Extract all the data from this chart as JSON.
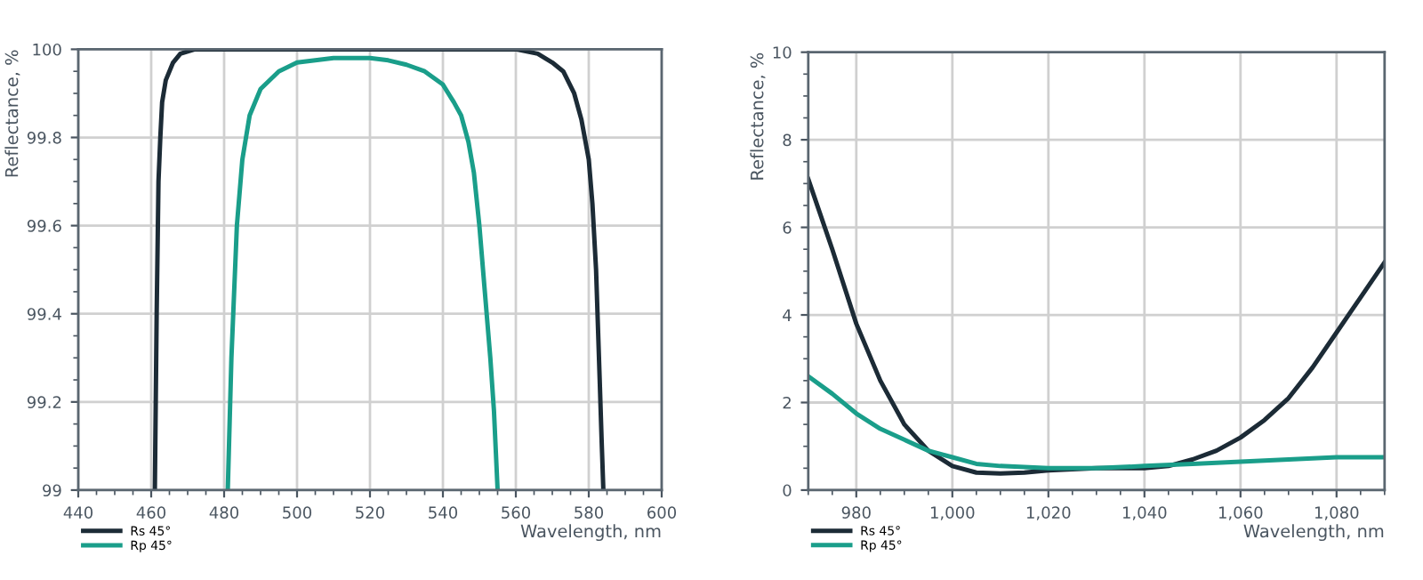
{
  "chart_data": [
    {
      "type": "line",
      "xlabel": "Wavelength, nm",
      "ylabel": "Reflectance, %",
      "xlim": [
        440,
        600
      ],
      "ylim": [
        99,
        100
      ],
      "xticks": [
        440,
        460,
        480,
        500,
        520,
        540,
        560,
        580,
        600
      ],
      "yticks": [
        99,
        99.2,
        99.4,
        99.6,
        99.8,
        100
      ],
      "grid": true,
      "legend": "bottom left",
      "line_style": "solid",
      "marker": "none",
      "series": [
        {
          "name": "Rs 45°",
          "color": "#1c2b36",
          "x": [
            461,
            461.5,
            462,
            462.5,
            463,
            464,
            466,
            468,
            472,
            480,
            500,
            520,
            540,
            560,
            566,
            570,
            573,
            576,
            578,
            580,
            581,
            582,
            583,
            583.5,
            584
          ],
          "values": [
            99,
            99.4,
            99.7,
            99.8,
            99.88,
            99.93,
            99.97,
            99.99,
            100,
            100,
            100,
            100,
            100,
            100,
            99.99,
            99.97,
            99.95,
            99.9,
            99.84,
            99.75,
            99.65,
            99.5,
            99.25,
            99.12,
            99
          ]
        },
        {
          "name": "Rp 45°",
          "color": "#1a9e8a",
          "x": [
            481,
            482,
            483.5,
            485,
            487,
            490,
            495,
            500,
            505,
            510,
            515,
            520,
            525,
            530,
            535,
            540,
            543,
            545,
            547,
            548.5,
            550,
            551.5,
            553,
            554,
            555
          ],
          "values": [
            99,
            99.3,
            99.6,
            99.75,
            99.85,
            99.91,
            99.95,
            99.97,
            99.975,
            99.98,
            99.98,
            99.98,
            99.975,
            99.965,
            99.95,
            99.92,
            99.88,
            99.85,
            99.79,
            99.72,
            99.6,
            99.45,
            99.3,
            99.18,
            99
          ]
        }
      ]
    },
    {
      "type": "line",
      "xlabel": "Wavelength, nm",
      "ylabel": "Reflectance, %",
      "xlim": [
        970,
        1090
      ],
      "ylim": [
        0,
        10
      ],
      "xticks": [
        980,
        {
          "value": 1000,
          "label": "1,000"
        },
        {
          "value": 1020,
          "label": "1,020"
        },
        {
          "value": 1040,
          "label": "1,040"
        },
        {
          "value": 1060,
          "label": "1,060"
        },
        {
          "value": 1080,
          "label": "1,080"
        }
      ],
      "yticks": [
        0,
        2,
        4,
        6,
        8,
        10
      ],
      "grid": true,
      "legend": "bottom left",
      "line_style": "solid",
      "marker": "none",
      "series": [
        {
          "name": "Rs 45°",
          "color": "#1c2b36",
          "x": [
            970,
            975,
            980,
            985,
            990,
            995,
            1000,
            1005,
            1010,
            1015,
            1020,
            1030,
            1040,
            1045,
            1050,
            1055,
            1060,
            1065,
            1070,
            1075,
            1080,
            1085,
            1090
          ],
          "values": [
            7.1,
            5.5,
            3.8,
            2.5,
            1.5,
            0.9,
            0.55,
            0.4,
            0.38,
            0.4,
            0.45,
            0.5,
            0.5,
            0.55,
            0.7,
            0.9,
            1.2,
            1.6,
            2.1,
            2.8,
            3.6,
            4.4,
            5.2
          ]
        },
        {
          "name": "Rp 45°",
          "color": "#1a9e8a",
          "x": [
            970,
            975,
            980,
            985,
            990,
            995,
            1000,
            1005,
            1010,
            1020,
            1030,
            1040,
            1050,
            1060,
            1070,
            1080,
            1090
          ],
          "values": [
            2.6,
            2.2,
            1.75,
            1.4,
            1.15,
            0.9,
            0.75,
            0.6,
            0.55,
            0.5,
            0.5,
            0.55,
            0.6,
            0.65,
            0.7,
            0.75,
            0.75
          ]
        }
      ]
    }
  ]
}
